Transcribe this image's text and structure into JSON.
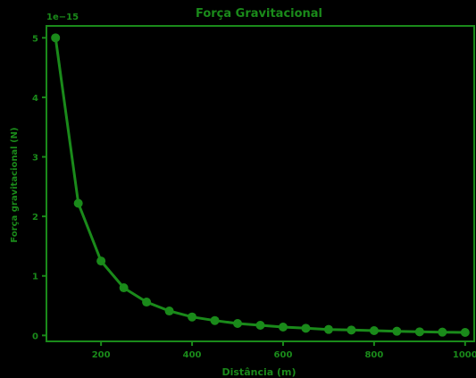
{
  "colors": {
    "background": "#000000",
    "accent": "#1a8a1a"
  },
  "chart_data": {
    "type": "line",
    "title": "Força Gravitacional",
    "xlabel": "Distância (m)",
    "ylabel": "Força gravitacional (N)",
    "scale_label": "1e−15",
    "xlim": [
      80,
      1020
    ],
    "ylim": [
      -0.1,
      5.2
    ],
    "x_ticks": [
      200,
      400,
      600,
      800,
      1000
    ],
    "y_ticks": [
      0,
      1,
      2,
      3,
      4,
      5
    ],
    "grid": false,
    "x": [
      100,
      150,
      200,
      250,
      300,
      350,
      400,
      450,
      500,
      550,
      600,
      650,
      700,
      750,
      800,
      850,
      900,
      950,
      1000
    ],
    "series": [
      {
        "values": [
          5.0,
          2.22,
          1.25,
          0.8,
          0.56,
          0.41,
          0.31,
          0.25,
          0.2,
          0.17,
          0.14,
          0.12,
          0.1,
          0.09,
          0.08,
          0.07,
          0.06,
          0.055,
          0.05
        ]
      }
    ]
  }
}
